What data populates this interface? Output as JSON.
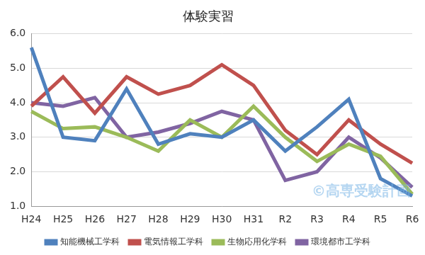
{
  "chart_data": {
    "type": "line",
    "title": "体験実習",
    "categories": [
      "H24",
      "H25",
      "H26",
      "H27",
      "H28",
      "H29",
      "H30",
      "H31",
      "R2",
      "R3",
      "R4",
      "R5",
      "R6"
    ],
    "series": [
      {
        "name": "知能機械工学科",
        "color": "#4f81bd",
        "values": [
          5.6,
          3.0,
          2.9,
          4.4,
          2.8,
          3.1,
          3.0,
          3.5,
          2.6,
          3.3,
          4.1,
          1.8,
          1.3
        ]
      },
      {
        "name": "電気情報工学科",
        "color": "#c0504d",
        "values": [
          3.9,
          4.75,
          3.7,
          4.75,
          4.25,
          4.5,
          5.1,
          4.5,
          3.2,
          2.5,
          3.5,
          2.8,
          2.25
        ]
      },
      {
        "name": "生物応用化学科",
        "color": "#9bbb59",
        "values": [
          3.75,
          3.25,
          3.3,
          3.0,
          2.6,
          3.5,
          3.0,
          3.9,
          3.0,
          2.3,
          2.8,
          2.45,
          1.35
        ]
      },
      {
        "name": "環境都市工学科",
        "color": "#8064a2",
        "values": [
          4.0,
          3.9,
          4.15,
          3.0,
          3.15,
          3.4,
          3.75,
          3.5,
          1.75,
          2.0,
          3.0,
          2.4,
          1.55
        ]
      }
    ],
    "ylim": [
      1.0,
      6.0
    ],
    "yticks": [
      {
        "value": 1.0,
        "label": "1.0"
      },
      {
        "value": 2.0,
        "label": "2.0"
      },
      {
        "value": 3.0,
        "label": "3.0"
      },
      {
        "value": 4.0,
        "label": "4.0"
      },
      {
        "value": 5.0,
        "label": "5.0"
      },
      {
        "value": 6.0,
        "label": "6.0"
      }
    ],
    "grid": true,
    "legend": "bottom",
    "annotation": "©高専受験計画"
  }
}
